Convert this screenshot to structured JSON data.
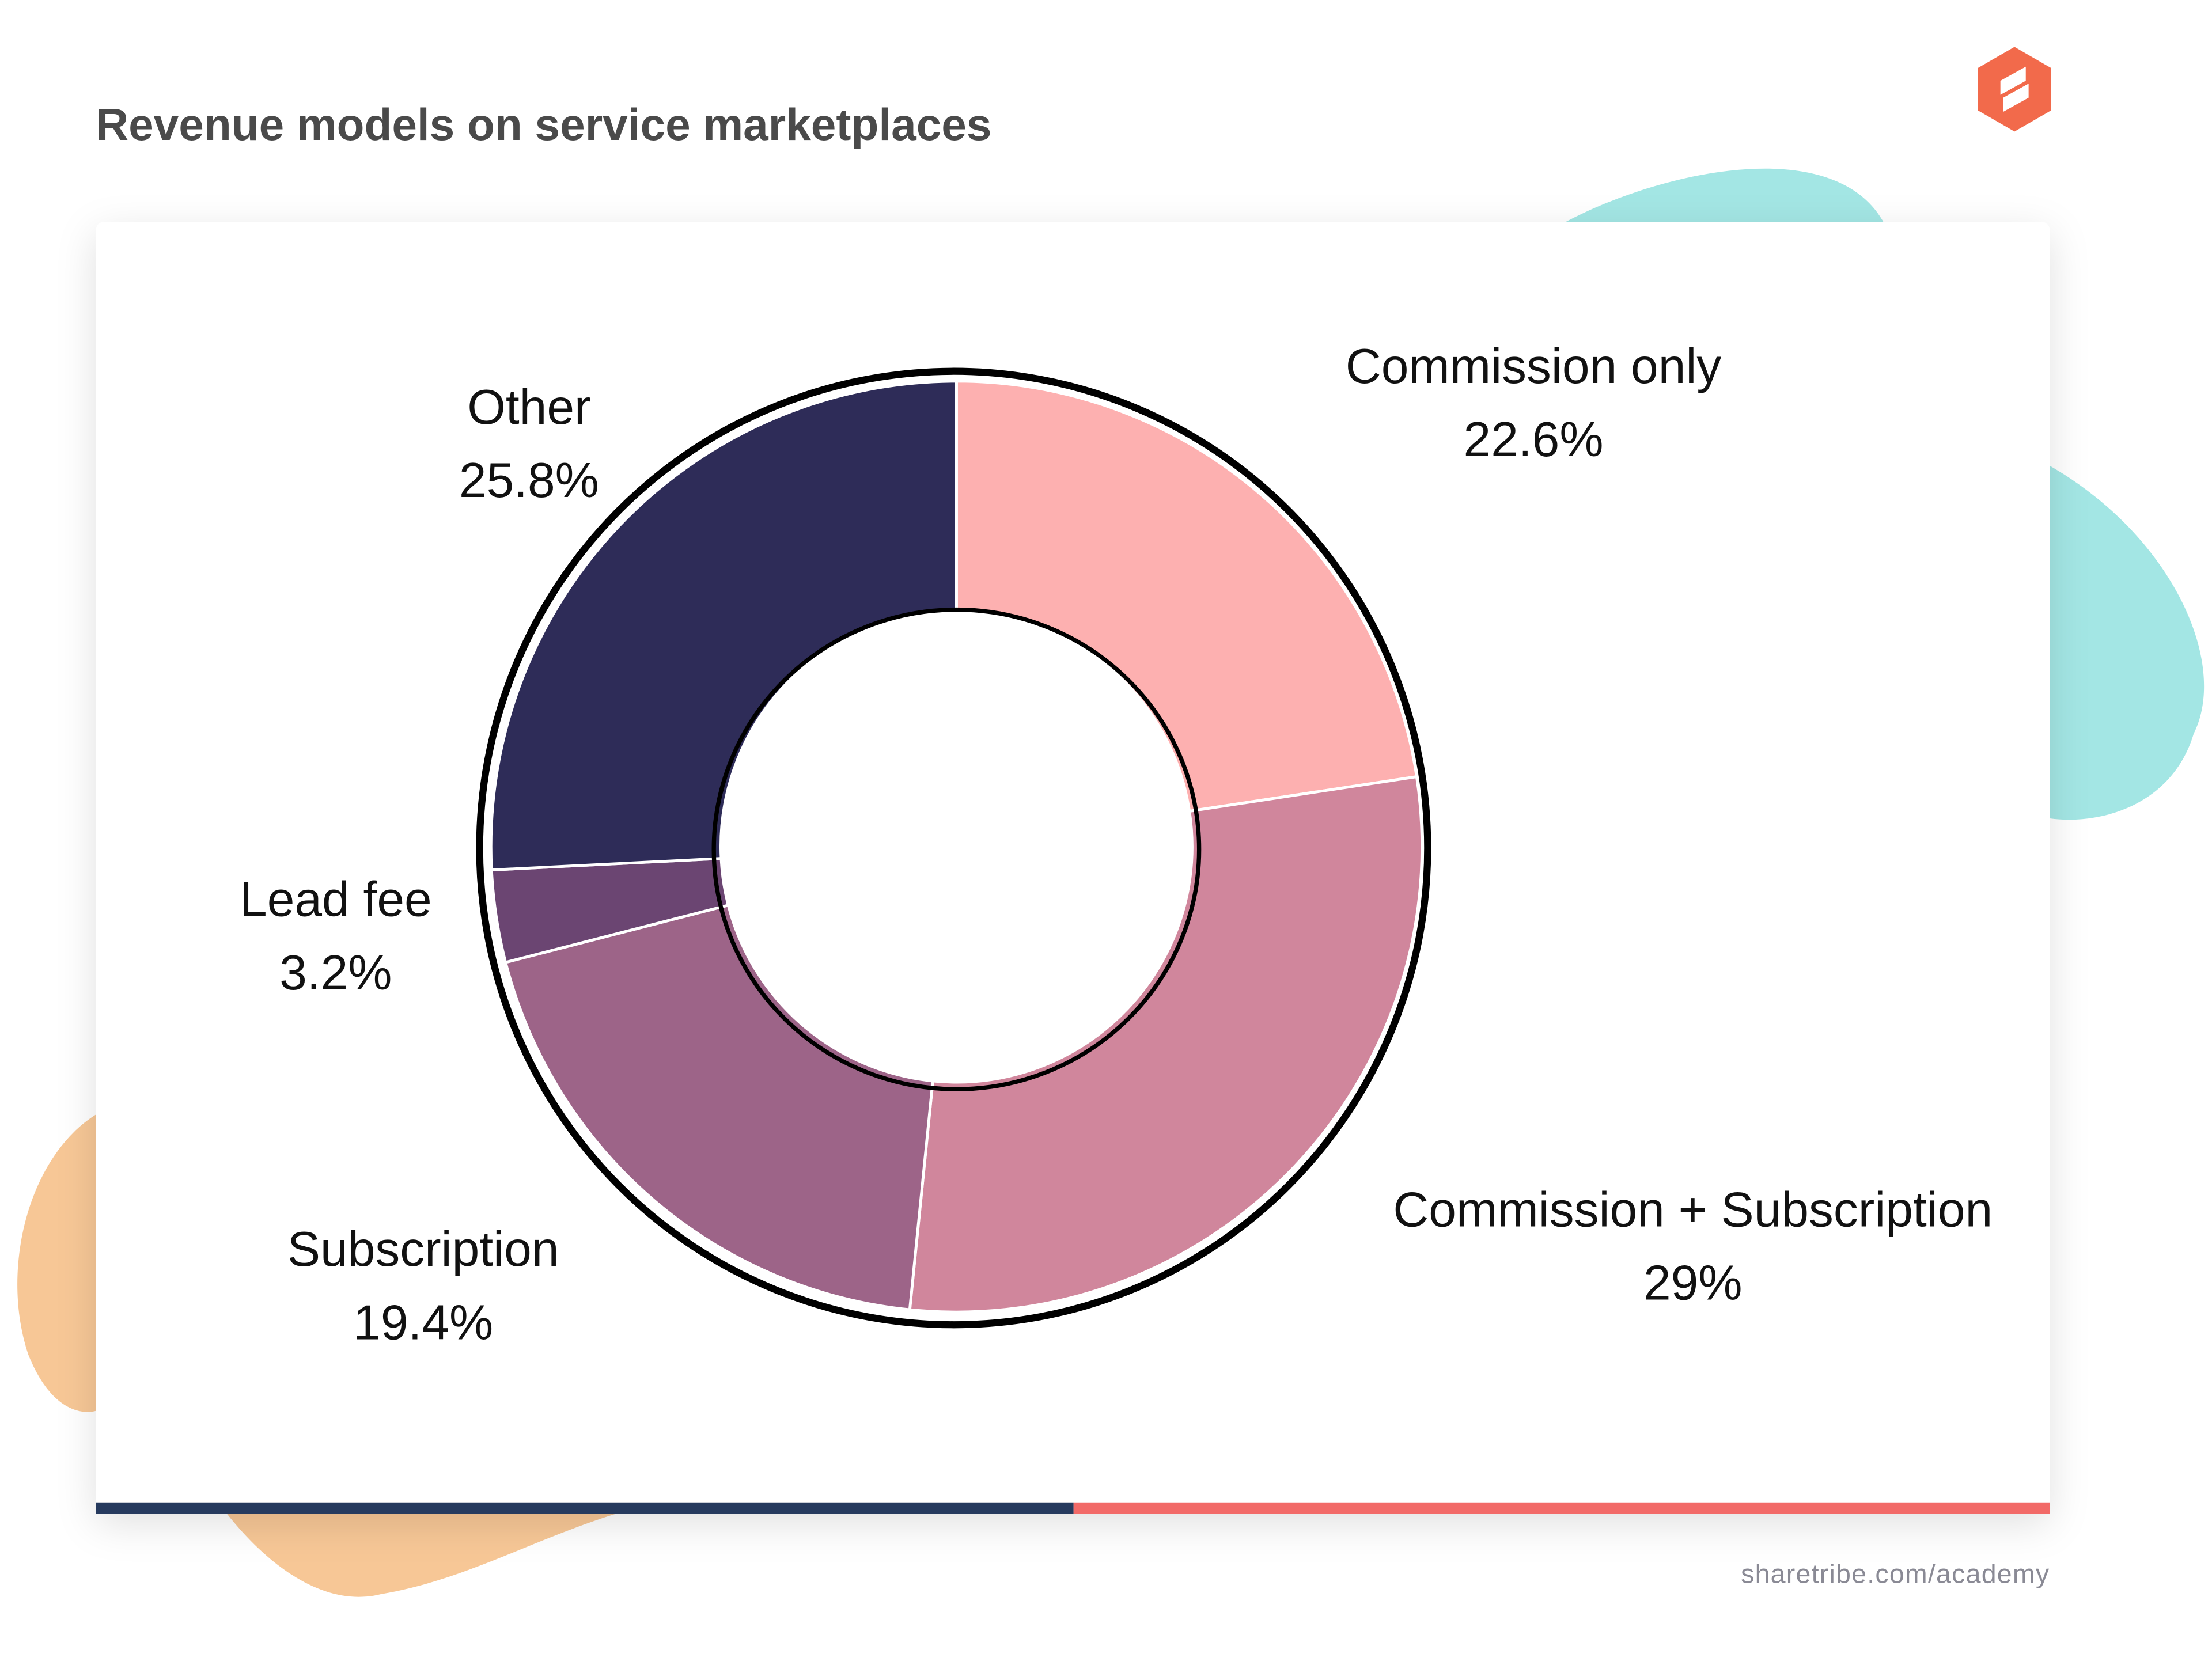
{
  "chart_data": {
    "type": "donut",
    "title": "Revenue models on service marketplaces",
    "categories": [
      "Commission only",
      "Commission + Subscription",
      "Subscription",
      "Lead fee",
      "Other"
    ],
    "values": [
      22.6,
      29,
      19.4,
      3.2,
      25.8
    ],
    "value_labels": [
      "22.6%",
      "29%",
      "19.4%",
      "3.2%",
      "25.8%"
    ],
    "colors": [
      "#fdb0b0",
      "#d0869c",
      "#9d6488",
      "#6b4572",
      "#2e2c58"
    ],
    "source": "sharetribe.com/academy"
  }
}
